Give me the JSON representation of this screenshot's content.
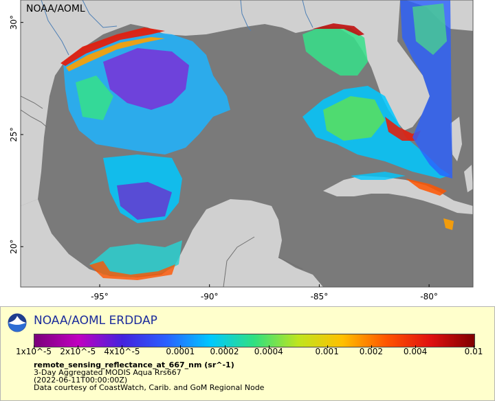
{
  "map": {
    "corner_label": "NOAA/AOML",
    "lat_ticks": [
      {
        "value": 30,
        "label": "30°"
      },
      {
        "value": 25,
        "label": "25°"
      },
      {
        "value": 20,
        "label": "20°"
      }
    ],
    "lon_ticks": [
      {
        "value": -95,
        "label": "-95°"
      },
      {
        "value": -90,
        "label": "-90°"
      },
      {
        "value": -85,
        "label": "-85°"
      },
      {
        "value": -80,
        "label": "-80°"
      }
    ],
    "colors": {
      "ocean_no_data": "#7a7a7a",
      "land": "#d0d0d0",
      "borders": "#707070",
      "rivers": "#4d7fb5"
    }
  },
  "legend": {
    "title": "NOAA/AOML ERDDAP",
    "colorbar_ticks": [
      "1x10^-5",
      "2x10^-5",
      "4x10^-5",
      "0.0001",
      "0.0002",
      "0.0004",
      "0.001",
      "0.002",
      "0.004",
      "0.01"
    ],
    "colorbar_colors": [
      "#7a007a",
      "#c000c0",
      "#4422dd",
      "#2a60ff",
      "#00c8ff",
      "#30e080",
      "#bfe51e",
      "#ffc000",
      "#ff5500",
      "#e01010",
      "#800000"
    ],
    "variable": "remote_sensing_reflectance_at_667_nm (sr^-1)",
    "dataset": "3-Day Aggregated MODIS Aqua Rrs667",
    "time": "(2022-06-11T00:00:00Z)",
    "credit": "Data courtesy of CoastWatch, Carib. and GoM Regional Node"
  }
}
